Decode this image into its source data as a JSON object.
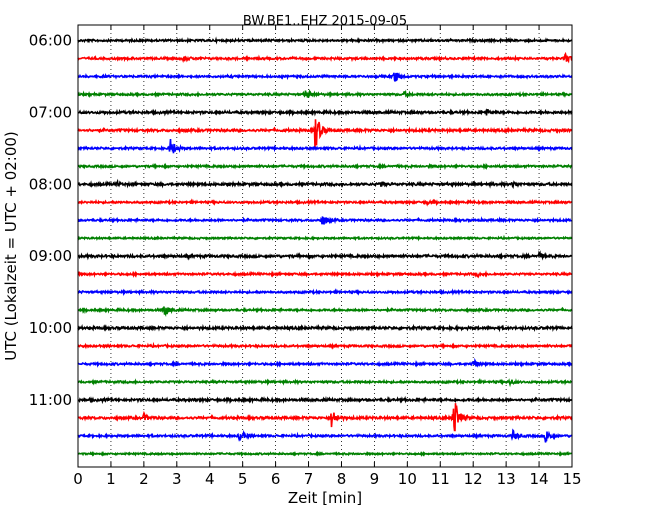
{
  "chart_data": {
    "type": "line",
    "title": "BW.BE1..EHZ 2015-09-05",
    "xlabel": "Zeit  [min]",
    "ylabel": "UTC (Lokalzeit = UTC + 02:00)",
    "xlim": [
      0,
      15
    ],
    "xticks": [
      "0",
      "1",
      "2",
      "3",
      "4",
      "5",
      "6",
      "7",
      "8",
      "9",
      "10",
      "11",
      "12",
      "13",
      "14",
      "15"
    ],
    "yticks": [
      "06:00",
      "07:00",
      "08:00",
      "09:00",
      "10:00",
      "11:00"
    ],
    "grid": true,
    "trace_colors": [
      "#000000",
      "#ff0000",
      "#0000ff",
      "#008000"
    ],
    "traces": [
      {
        "start": "06:00",
        "events": [],
        "noise": 1.0
      },
      {
        "start": "06:15",
        "events": [
          [
            3.2,
            3
          ],
          [
            14.8,
            6
          ]
        ],
        "noise": 1.0
      },
      {
        "start": "06:30",
        "events": [
          [
            9.6,
            7
          ]
        ],
        "noise": 1.0
      },
      {
        "start": "06:45",
        "events": [
          [
            6.9,
            6
          ],
          [
            9.9,
            2
          ]
        ],
        "noise": 1.0
      },
      {
        "start": "07:00",
        "events": [
          [
            12.4,
            3
          ]
        ],
        "noise": 1.2
      },
      {
        "start": "07:15",
        "events": [
          [
            7.2,
            22
          ]
        ],
        "noise": 1.2
      },
      {
        "start": "07:30",
        "events": [
          [
            2.8,
            11
          ]
        ],
        "noise": 1.0
      },
      {
        "start": "07:45",
        "events": [],
        "noise": 1.0
      },
      {
        "start": "08:00",
        "events": [
          [
            1.2,
            2
          ],
          [
            9.2,
            2
          ],
          [
            13.2,
            3
          ]
        ],
        "noise": 1.2
      },
      {
        "start": "08:15",
        "events": [
          [
            10.6,
            2
          ]
        ],
        "noise": 1.0
      },
      {
        "start": "08:30",
        "events": [
          [
            7.4,
            7
          ]
        ],
        "noise": 1.0
      },
      {
        "start": "08:45",
        "events": [],
        "noise": 0.8
      },
      {
        "start": "09:00",
        "events": [
          [
            14.0,
            3
          ]
        ],
        "noise": 1.2
      },
      {
        "start": "09:15",
        "events": [
          [
            12.1,
            2
          ]
        ],
        "noise": 1.0
      },
      {
        "start": "09:30",
        "events": [],
        "noise": 1.0
      },
      {
        "start": "09:45",
        "events": [
          [
            2.6,
            8
          ]
        ],
        "noise": 1.0
      },
      {
        "start": "10:00",
        "events": [],
        "noise": 1.2
      },
      {
        "start": "10:15",
        "events": [],
        "noise": 1.0
      },
      {
        "start": "10:30",
        "events": [
          [
            12.0,
            5
          ]
        ],
        "noise": 1.0
      },
      {
        "start": "10:45",
        "events": [
          [
            13.1,
            3
          ]
        ],
        "noise": 1.0
      },
      {
        "start": "11:00",
        "events": [],
        "noise": 1.2
      },
      {
        "start": "11:15",
        "events": [
          [
            2.0,
            4
          ],
          [
            7.7,
            11
          ],
          [
            11.4,
            28
          ]
        ],
        "noise": 1.2
      },
      {
        "start": "11:30",
        "events": [
          [
            4.9,
            6
          ],
          [
            13.2,
            6
          ],
          [
            14.2,
            8
          ]
        ],
        "noise": 1.0
      },
      {
        "start": "11:45",
        "events": [],
        "noise": 0.8
      }
    ]
  }
}
